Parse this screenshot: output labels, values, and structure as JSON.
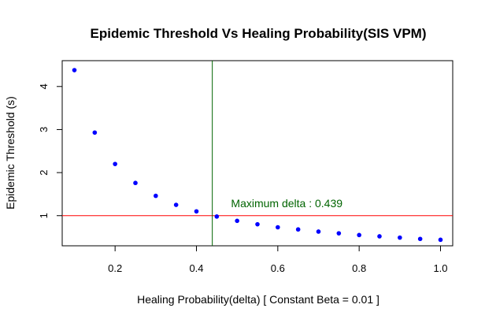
{
  "chart_data": {
    "type": "scatter",
    "title": "Epidemic Threshold Vs Healing Probability(SIS VPM)",
    "xlabel": "Healing Probability(delta)  [ Constant Beta =  0.01  ]",
    "ylabel": "Epidemic Threshold (s)",
    "xlim": [
      0.07,
      1.03
    ],
    "ylim": [
      0.3,
      4.6
    ],
    "xticks": [
      0.2,
      0.4,
      0.6,
      0.8,
      1.0
    ],
    "xtick_labels": [
      "0.2",
      "0.4",
      "0.6",
      "0.8",
      "1.0"
    ],
    "yticks": [
      1,
      2,
      3,
      4
    ],
    "ytick_labels": [
      "1",
      "2",
      "3",
      "4"
    ],
    "grid": false,
    "series": [
      {
        "color": "#0000ff",
        "points": [
          {
            "x": 0.1,
            "y": 4.38
          },
          {
            "x": 0.15,
            "y": 2.93
          },
          {
            "x": 0.2,
            "y": 2.2
          },
          {
            "x": 0.25,
            "y": 1.76
          },
          {
            "x": 0.3,
            "y": 1.46
          },
          {
            "x": 0.35,
            "y": 1.25
          },
          {
            "x": 0.4,
            "y": 1.1
          },
          {
            "x": 0.45,
            "y": 0.98
          },
          {
            "x": 0.5,
            "y": 0.88
          },
          {
            "x": 0.55,
            "y": 0.8
          },
          {
            "x": 0.6,
            "y": 0.73
          },
          {
            "x": 0.65,
            "y": 0.68
          },
          {
            "x": 0.7,
            "y": 0.63
          },
          {
            "x": 0.75,
            "y": 0.59
          },
          {
            "x": 0.8,
            "y": 0.55
          },
          {
            "x": 0.85,
            "y": 0.52
          },
          {
            "x": 0.9,
            "y": 0.49
          },
          {
            "x": 0.95,
            "y": 0.46
          },
          {
            "x": 1.0,
            "y": 0.44
          }
        ]
      }
    ],
    "hline": {
      "y": 1,
      "color": "#ff0000"
    },
    "vline": {
      "x": 0.439,
      "color": "#006400"
    },
    "annotation": {
      "text": "Maximum delta : 0.439",
      "x": 0.485,
      "y": 1.2,
      "color": "#006400"
    }
  }
}
